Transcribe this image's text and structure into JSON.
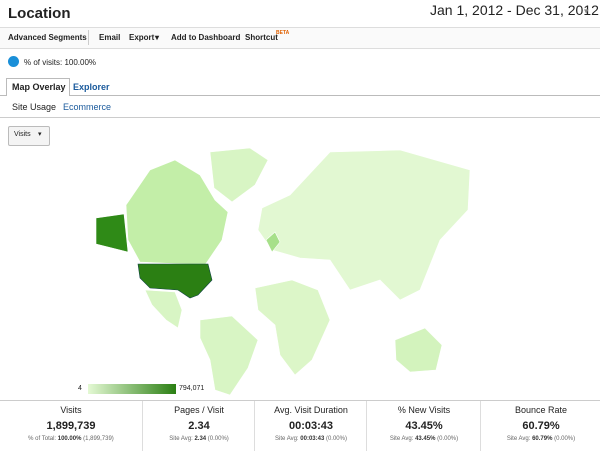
{
  "header": {
    "title": "Location",
    "date_range": "Jan 1, 2012 - Dec 31, 2012"
  },
  "toolbar": {
    "items": [
      "Advanced Segments",
      "Email",
      "Export",
      "Add to Dashboard",
      "Shortcut"
    ],
    "badge": "BETA"
  },
  "segment": "% of visits: 100.00%",
  "tabs": [
    "Map Overlay",
    "Explorer"
  ],
  "subtabs": [
    "Site Usage",
    "Ecommerce"
  ],
  "metric_selector": "Visits",
  "legend": {
    "min": "4",
    "max": "794,071"
  },
  "summary": [
    {
      "label": "Visits",
      "value": "1,899,739",
      "sub": {
        "prefix": "% of Total:",
        "bold": "100.00%",
        "suffix": "(1,899,739)"
      }
    },
    {
      "label": "Pages / Visit",
      "value": "2.34",
      "sub": {
        "prefix": "Site Avg:",
        "bold": "2.34",
        "suffix": "(0.00%)"
      }
    },
    {
      "label": "Avg. Visit Duration",
      "value": "00:03:43",
      "sub": {
        "prefix": "Site Avg:",
        "bold": "00:03:43",
        "suffix": "(0.00%)"
      }
    },
    {
      "label": "% New Visits",
      "value": "43.45%",
      "sub": {
        "prefix": "Site Avg:",
        "bold": "43.45%",
        "suffix": "(0.00%)"
      }
    },
    {
      "label": "Bounce Rate",
      "value": "60.79%",
      "sub": {
        "prefix": "Site Avg:",
        "bold": "60.79%",
        "suffix": "(0.00%)"
      }
    }
  ]
}
